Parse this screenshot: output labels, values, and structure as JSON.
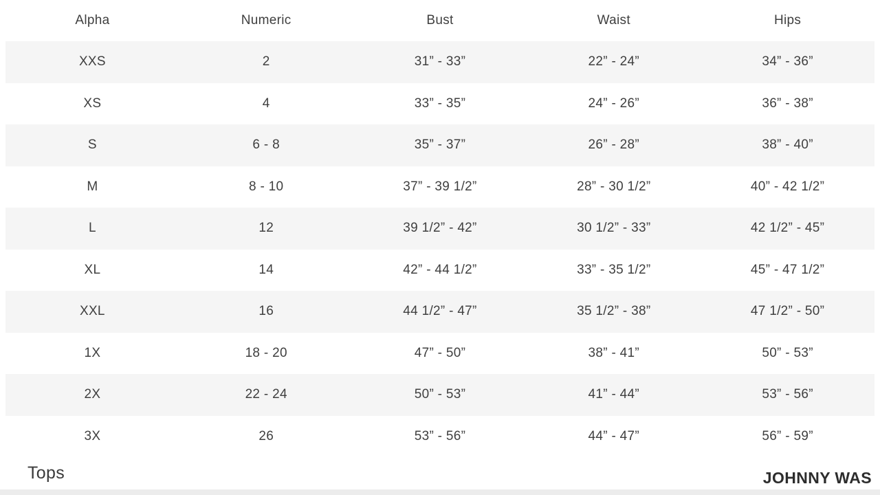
{
  "page": {
    "category_label": "Tops",
    "brand": "JOHNNY WAS"
  },
  "colors": {
    "stripe": "#f5f5f5",
    "text": "#3f3f3f",
    "brand_text": "#2d2d2d",
    "bottom_band": "#ececec"
  },
  "size_chart": {
    "headers": [
      "Alpha",
      "Numeric",
      "Bust",
      "Waist",
      "Hips"
    ],
    "rows": [
      [
        "XXS",
        "2",
        "31” - 33”",
        "22” - 24”",
        "34” - 36”"
      ],
      [
        "XS",
        "4",
        "33” - 35”",
        "24” - 26”",
        "36” - 38”"
      ],
      [
        "S",
        "6 - 8",
        "35” - 37”",
        "26” - 28”",
        "38” - 40”"
      ],
      [
        "M",
        "8 - 10",
        "37” - 39 1/2”",
        "28” - 30 1/2”",
        "40” - 42 1/2”"
      ],
      [
        "L",
        "12",
        "39 1/2” - 42”",
        "30 1/2” - 33”",
        "42 1/2” - 45”"
      ],
      [
        "XL",
        "14",
        "42” - 44 1/2”",
        "33” - 35 1/2”",
        "45” - 47 1/2”"
      ],
      [
        "XXL",
        "16",
        "44 1/2” - 47”",
        "35 1/2” - 38”",
        "47 1/2” - 50”"
      ],
      [
        "1X",
        "18 - 20",
        "47” - 50”",
        "38” - 41”",
        "50” - 53”"
      ],
      [
        "2X",
        "22 - 24",
        "50” - 53”",
        "41” - 44”",
        "53” - 56”"
      ],
      [
        "3X",
        "26",
        "53” - 56”",
        "44” - 47”",
        "56” - 59”"
      ]
    ]
  }
}
